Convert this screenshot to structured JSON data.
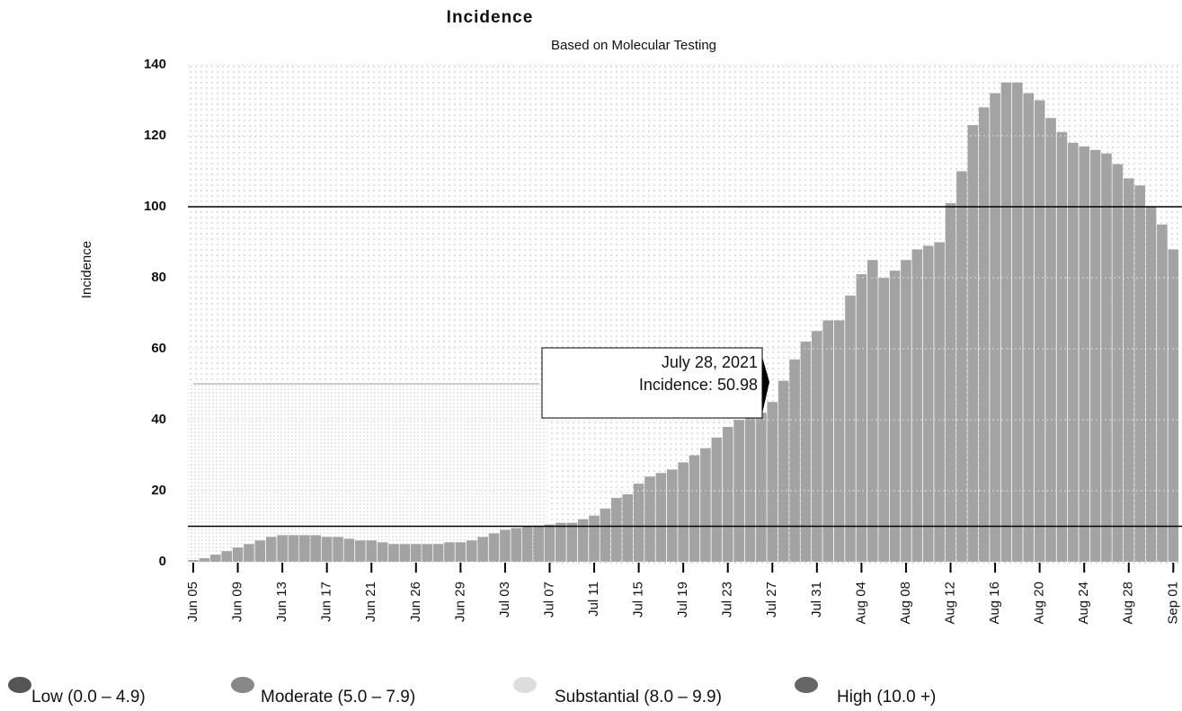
{
  "chart_data": {
    "type": "bar",
    "title": "Incidence",
    "subtitle": "Based on Molecular Testing",
    "y_label": "Incidence",
    "categories": [
      "Jun 05",
      null,
      null,
      null,
      "Jun 09",
      null,
      null,
      null,
      "Jun 13",
      null,
      null,
      null,
      "Jun 17",
      null,
      null,
      null,
      "Jun 21",
      null,
      null,
      null,
      "Jun 26",
      null,
      null,
      null,
      "Jun 29",
      null,
      null,
      null,
      "Jul 03",
      null,
      null,
      null,
      "Jul 07",
      null,
      null,
      null,
      "Jul 11",
      null,
      null,
      null,
      "Jul 15",
      null,
      null,
      null,
      "Jul 19",
      null,
      null,
      null,
      "Jul 23",
      null,
      null,
      null,
      "Jul 27",
      null,
      null,
      null,
      "Jul 31",
      null,
      null,
      null,
      "Aug 04",
      null,
      null,
      null,
      "Aug 08",
      null,
      null,
      null,
      "Aug 12",
      null,
      null,
      null,
      "Aug 16",
      null,
      null,
      null,
      "Aug 20",
      null,
      null,
      null,
      "Aug 24",
      null,
      null,
      null,
      "Aug 28",
      null,
      null,
      null,
      "Sep 01"
    ],
    "values": [
      0.5,
      1,
      2,
      3,
      4,
      5,
      6,
      7,
      7.5,
      7.5,
      7.5,
      7.5,
      7,
      7,
      6.5,
      6,
      6,
      5.5,
      5,
      5,
      5,
      5,
      5,
      5.5,
      5.5,
      6,
      7,
      8,
      9,
      9.5,
      10,
      10,
      10.5,
      11,
      11,
      12,
      13,
      15,
      18,
      19,
      22,
      24,
      25,
      26,
      28,
      30,
      32,
      35,
      38,
      40,
      41,
      42,
      45,
      50.98,
      57,
      62,
      65,
      68,
      68,
      75,
      81,
      85,
      80,
      82,
      85,
      88,
      89,
      90,
      101,
      110,
      123,
      128,
      132,
      135,
      135,
      132,
      130,
      125,
      121,
      118,
      117,
      116,
      115,
      112,
      108,
      106,
      100,
      95,
      88
    ],
    "color": "#a3a3a3",
    "ylim": [
      0,
      140
    ],
    "yticks": [
      0,
      20,
      40,
      60,
      80,
      100,
      120,
      140
    ],
    "reference_lines": [
      10,
      100
    ],
    "tooltip": [
      "July 28, 2021",
      "Incidence: 50.98"
    ],
    "legend": [
      "Low (0.0 – 4.9)",
      "Moderate (5.0 – 7.9)",
      "Substantial (8.0 – 9.9)",
      "High (10.0 +)"
    ]
  }
}
